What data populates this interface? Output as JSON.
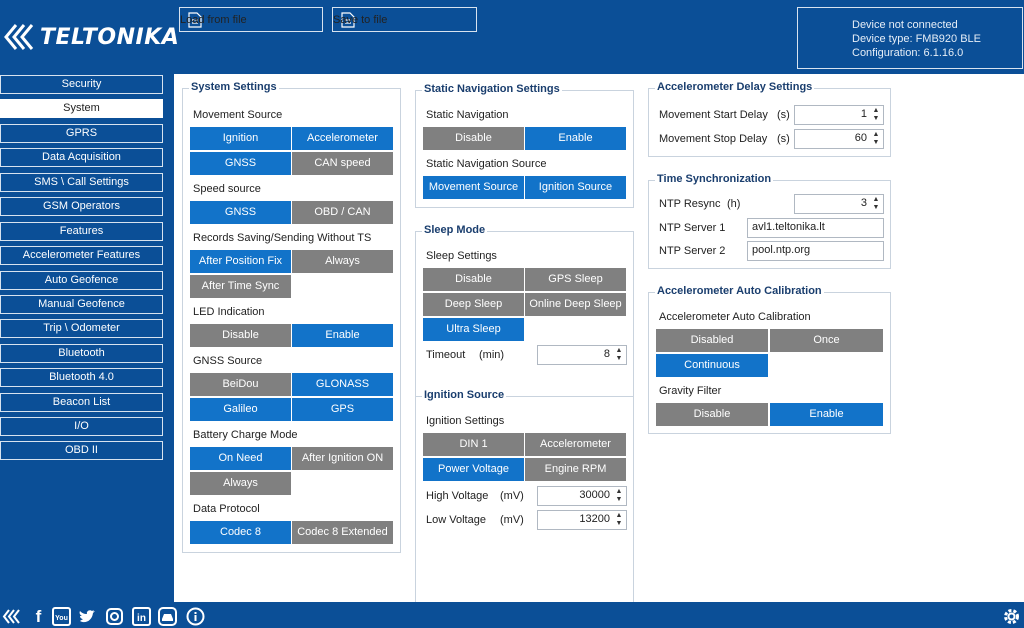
{
  "header": {
    "logo_text": "TELTONIKA",
    "load_button": "Load from file",
    "save_button": "Save to file",
    "status_line1": "Device not connected",
    "status_line2": "Device type: FMB920 BLE",
    "status_line3": "Configuration: 6.1.16.0"
  },
  "sidebar": {
    "items": [
      {
        "label": "Security"
      },
      {
        "label": "System"
      },
      {
        "label": "GPRS"
      },
      {
        "label": "Data Acquisition"
      },
      {
        "label": "SMS \\ Call Settings"
      },
      {
        "label": "GSM Operators"
      },
      {
        "label": "Features"
      },
      {
        "label": "Accelerometer Features"
      },
      {
        "label": "Auto Geofence"
      },
      {
        "label": "Manual Geofence"
      },
      {
        "label": "Trip \\ Odometer"
      },
      {
        "label": "Bluetooth"
      },
      {
        "label": "Bluetooth 4.0"
      },
      {
        "label": "Beacon List"
      },
      {
        "label": "I/O"
      },
      {
        "label": "OBD II"
      }
    ],
    "active": "System"
  },
  "system_settings": {
    "title": "System Settings",
    "movement_source": {
      "label": "Movement Source",
      "ignition": "Ignition",
      "accelerometer": "Accelerometer",
      "gnss": "GNSS",
      "can_speed": "CAN speed"
    },
    "speed_source": {
      "label": "Speed source",
      "gnss": "GNSS",
      "obd_can": "OBD / CAN"
    },
    "records_saving": {
      "label": "Records Saving/Sending Without TS",
      "after_fix": "After Position Fix",
      "always": "Always",
      "after_time_sync": "After Time Sync"
    },
    "led_indication": {
      "label": "LED Indication",
      "disable": "Disable",
      "enable": "Enable"
    },
    "gnss_source": {
      "label": "GNSS Source",
      "beidou": "BeiDou",
      "glonass": "GLONASS",
      "galileo": "Galileo",
      "gps": "GPS"
    },
    "battery_charge": {
      "label": "Battery Charge Mode",
      "on_need": "On Need",
      "after_ignition_on": "After Ignition ON",
      "always": "Always"
    },
    "data_protocol": {
      "label": "Data Protocol",
      "codec8": "Codec 8",
      "codec8_ext": "Codec 8 Extended"
    }
  },
  "static_nav": {
    "title": "Static Navigation Settings",
    "static_nav_label": "Static Navigation",
    "disable": "Disable",
    "enable": "Enable",
    "source_label": "Static Navigation Source",
    "movement_source": "Movement Source",
    "ignition_source": "Ignition Source"
  },
  "sleep_mode": {
    "title": "Sleep Mode",
    "settings_label": "Sleep Settings",
    "disable": "Disable",
    "gps_sleep": "GPS Sleep",
    "deep_sleep": "Deep Sleep",
    "online_deep_sleep": "Online Deep Sleep",
    "ultra_sleep": "Ultra Sleep",
    "timeout_label": "Timeout",
    "timeout_unit": "(min)",
    "timeout_value": "8"
  },
  "ignition_source": {
    "title": "Ignition Source",
    "settings_label": "Ignition Settings",
    "din1": "DIN 1",
    "accelerometer": "Accelerometer",
    "power_voltage": "Power Voltage",
    "engine_rpm": "Engine RPM",
    "high_voltage_label": "High Voltage",
    "high_voltage_unit": "(mV)",
    "high_voltage_value": "30000",
    "low_voltage_label": "Low Voltage",
    "low_voltage_unit": "(mV)",
    "low_voltage_value": "13200"
  },
  "accel_delay": {
    "title": "Accelerometer Delay Settings",
    "start_label": "Movement Start Delay",
    "start_unit": "(s)",
    "start_value": "1",
    "stop_label": "Movement Stop Delay",
    "stop_unit": "(s)",
    "stop_value": "60"
  },
  "time_sync": {
    "title": "Time Synchronization",
    "ntp_resync_label": "NTP Resync",
    "ntp_resync_unit": "(h)",
    "ntp_resync_value": "3",
    "server1_label": "NTP Server 1",
    "server1_value": "avl1.teltonika.lt",
    "server2_label": "NTP Server 2",
    "server2_value": "pool.ntp.org"
  },
  "auto_calibration": {
    "title": "Accelerometer Auto Calibration",
    "label": "Accelerometer Auto Calibration",
    "disabled": "Disabled",
    "once": "Once",
    "continuous": "Continuous",
    "gravity_label": "Gravity Filter",
    "disable": "Disable",
    "enable": "Enable"
  },
  "bottom_icons": [
    "teltonika-icon",
    "facebook-icon",
    "youtube-icon",
    "twitter-icon",
    "instagram-icon",
    "linkedin-icon",
    "car-icon",
    "info-icon",
    "gear-icon"
  ],
  "colors": {
    "brand": "#0b4f97",
    "selected": "#1273c9",
    "unselected": "#808080"
  }
}
